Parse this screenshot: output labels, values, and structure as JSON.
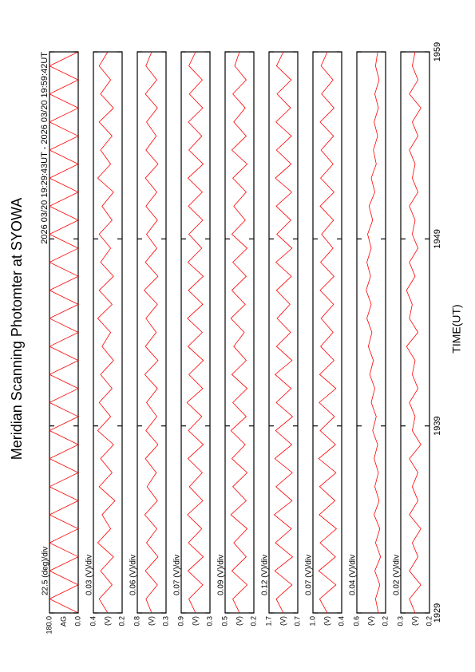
{
  "chart_data": {
    "type": "line",
    "title": "Meridian Scanning Photomter at SYOWA",
    "subtitle": "2026 03/20 19:29:43UT - 2026 03/20 19:59:42UT",
    "xlabel": "TIME(UT)",
    "color": "#ff0000",
    "x": [
      0,
      0.75,
      1.5,
      2.25,
      3,
      3.75,
      4.5,
      5.25,
      6,
      6.75,
      7.5,
      8.25,
      9,
      9.75,
      10.5,
      11.25,
      12,
      12.75,
      13.5,
      14.25,
      15,
      15.75,
      16.5,
      17.25,
      18,
      18.75,
      19.5,
      20.25,
      21,
      21.75,
      22.5,
      23.25,
      24,
      24.75,
      25.5,
      26.25,
      27,
      27.75,
      28.5,
      29.25,
      30
    ],
    "xlim": [
      0,
      30
    ],
    "xticks": [
      {
        "value": 0,
        "label": "1929"
      },
      {
        "value": 10,
        "label": "1939"
      },
      {
        "value": 20,
        "label": "1949"
      },
      {
        "value": 30,
        "label": "1959"
      }
    ],
    "series": [
      {
        "scale": "22.5 (deg)/div",
        "unit": "AG",
        "ylim": [
          0,
          180
        ],
        "yticks": [
          {
            "value": 180,
            "label": "180.0"
          },
          {
            "value": 0,
            "label": "0.0"
          }
        ],
        "values": [
          0,
          180,
          0,
          180,
          0,
          180,
          0,
          180,
          0,
          180,
          0,
          180,
          0,
          180,
          0,
          180,
          0,
          180,
          0,
          180,
          0,
          180,
          0,
          180,
          0,
          180,
          0,
          180,
          0,
          180,
          0,
          180,
          0,
          180,
          0,
          180,
          0,
          180,
          0,
          180,
          0
        ]
      },
      {
        "scale": "0.03 (V)/div",
        "unit": "(V)",
        "ylim": [
          0.2,
          0.4
        ],
        "yticks": [
          0.4,
          0.2
        ],
        "values": [
          0.3,
          0.36,
          0.27,
          0.35,
          0.26,
          0.37,
          0.28,
          0.34,
          0.25,
          0.36,
          0.27,
          0.35,
          0.26,
          0.37,
          0.28,
          0.36,
          0.27,
          0.35,
          0.26,
          0.34,
          0.28,
          0.37,
          0.27,
          0.36,
          0.26,
          0.35,
          0.28,
          0.36,
          0.27,
          0.34,
          0.26,
          0.37,
          0.28,
          0.35,
          0.27,
          0.36,
          0.26,
          0.35,
          0.28,
          0.36,
          0.3
        ]
      },
      {
        "scale": "0.06 (V)/div",
        "unit": "(V)",
        "ylim": [
          0.3,
          0.8
        ],
        "yticks": [
          0.8,
          0.3
        ],
        "values": [
          0.55,
          0.65,
          0.45,
          0.66,
          0.44,
          0.64,
          0.46,
          0.67,
          0.45,
          0.63,
          0.47,
          0.66,
          0.44,
          0.65,
          0.46,
          0.64,
          0.45,
          0.67,
          0.44,
          0.66,
          0.47,
          0.65,
          0.45,
          0.68,
          0.44,
          0.66,
          0.46,
          0.64,
          0.45,
          0.65,
          0.46,
          0.66,
          0.44,
          0.65,
          0.47,
          0.64,
          0.45,
          0.66,
          0.46,
          0.65,
          0.55
        ]
      },
      {
        "scale": "0.07 (V)/div",
        "unit": "(V)",
        "ylim": [
          0.3,
          0.9
        ],
        "yticks": [
          0.9,
          0.3
        ],
        "values": [
          0.6,
          0.74,
          0.45,
          0.76,
          0.44,
          0.75,
          0.47,
          0.77,
          0.45,
          0.73,
          0.46,
          0.76,
          0.44,
          0.75,
          0.47,
          0.78,
          0.45,
          0.74,
          0.44,
          0.76,
          0.46,
          0.77,
          0.45,
          0.75,
          0.44,
          0.76,
          0.47,
          0.74,
          0.45,
          0.75,
          0.46,
          0.76,
          0.44,
          0.74,
          0.47,
          0.75,
          0.45,
          0.73,
          0.46,
          0.74,
          0.6
        ]
      },
      {
        "scale": "0.09 (V)/div",
        "unit": "(V)",
        "ylim": [
          0.2,
          0.5
        ],
        "yticks": [
          0.5,
          0.2
        ],
        "values": [
          0.35,
          0.42,
          0.27,
          0.43,
          0.28,
          0.41,
          0.27,
          0.44,
          0.28,
          0.42,
          0.27,
          0.43,
          0.29,
          0.44,
          0.28,
          0.42,
          0.27,
          0.43,
          0.28,
          0.41,
          0.3,
          0.44,
          0.29,
          0.43,
          0.28,
          0.42,
          0.27,
          0.43,
          0.29,
          0.41,
          0.28,
          0.42,
          0.27,
          0.43,
          0.28,
          0.41,
          0.29,
          0.42,
          0.28,
          0.4,
          0.35
        ]
      },
      {
        "scale": "0.12 (V)/div",
        "unit": "(V)",
        "ylim": [
          0.7,
          1.7
        ],
        "yticks": [
          1.7,
          0.7
        ],
        "values": [
          1.2,
          1.45,
          0.9,
          1.5,
          0.88,
          1.48,
          0.92,
          1.52,
          0.9,
          1.46,
          0.89,
          1.5,
          0.91,
          1.47,
          0.88,
          1.45,
          0.93,
          1.49,
          0.9,
          1.44,
          0.95,
          1.42,
          0.97,
          1.44,
          0.92,
          1.46,
          0.9,
          1.43,
          0.94,
          1.45,
          0.91,
          1.48,
          0.93,
          1.44,
          0.92,
          1.46,
          0.95,
          1.42,
          0.93,
          1.44,
          1.2
        ]
      },
      {
        "scale": "0.07 (V)/div",
        "unit": "(V)",
        "ylim": [
          0.4,
          1.0
        ],
        "yticks": [
          {
            "value": 1,
            "label": "1.0"
          },
          0.4
        ],
        "values": [
          0.7,
          0.86,
          0.52,
          0.88,
          0.53,
          0.85,
          0.51,
          0.87,
          0.54,
          0.86,
          0.52,
          0.88,
          0.53,
          0.85,
          0.55,
          0.87,
          0.52,
          0.86,
          0.56,
          0.84,
          0.58,
          0.83,
          0.57,
          0.85,
          0.56,
          0.84,
          0.58,
          0.82,
          0.57,
          0.85,
          0.56,
          0.84,
          0.58,
          0.83,
          0.57,
          0.85,
          0.56,
          0.82,
          0.58,
          0.83,
          0.7
        ]
      },
      {
        "scale": "0.04 (V)/div",
        "unit": "(V)",
        "ylim": [
          0.2,
          0.6
        ],
        "yticks": [
          0.6,
          0.2
        ],
        "values": [
          0.3,
          0.34,
          0.28,
          0.35,
          0.27,
          0.34,
          0.28,
          0.36,
          0.29,
          0.35,
          0.3,
          0.36,
          0.31,
          0.38,
          0.33,
          0.4,
          0.35,
          0.42,
          0.37,
          0.44,
          0.39,
          0.46,
          0.4,
          0.47,
          0.41,
          0.46,
          0.4,
          0.45,
          0.38,
          0.43,
          0.35,
          0.4,
          0.33,
          0.37,
          0.31,
          0.36,
          0.3,
          0.35,
          0.29,
          0.34,
          0.31
        ]
      },
      {
        "scale": "0.02 (V)/div",
        "unit": "(V)",
        "ylim": [
          0.2,
          0.3
        ],
        "yticks": [
          0.3,
          0.2
        ],
        "values": [
          0.25,
          0.27,
          0.23,
          0.27,
          0.24,
          0.26,
          0.23,
          0.27,
          0.24,
          0.26,
          0.24,
          0.27,
          0.23,
          0.26,
          0.25,
          0.27,
          0.24,
          0.26,
          0.25,
          0.28,
          0.24,
          0.27,
          0.26,
          0.28,
          0.25,
          0.27,
          0.24,
          0.26,
          0.25,
          0.27,
          0.24,
          0.26,
          0.25,
          0.27,
          0.24,
          0.26,
          0.23,
          0.27,
          0.24,
          0.26,
          0.25
        ]
      }
    ]
  }
}
